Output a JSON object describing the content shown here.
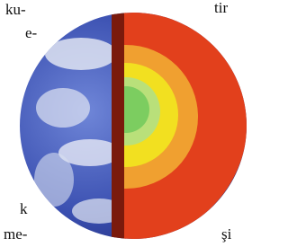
{
  "text_fragments": [
    "ku-",
    "e-",
    "tir",
    "k",
    "me-",
    "şi"
  ]
}
